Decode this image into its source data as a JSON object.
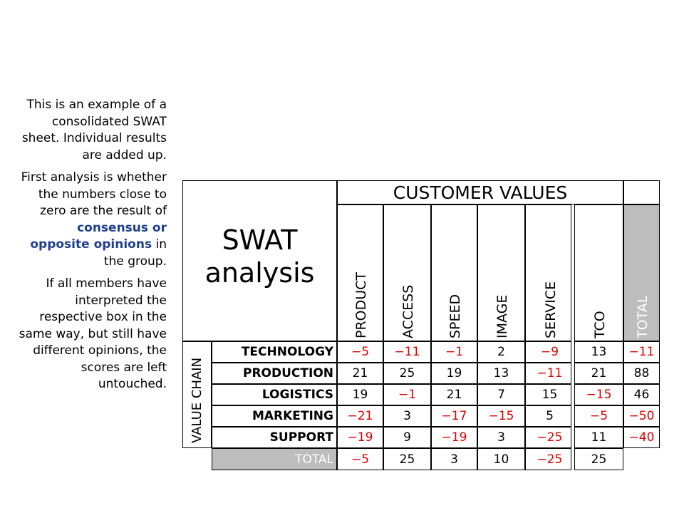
{
  "side_text": {
    "p1": "This is an example of a consolidated SWAT sheet. Individual results are added up.",
    "p2_before": "First analysis is whether the numbers close to zero are the result of ",
    "p2_highlight": "consensus or opposite opinions",
    "p2_after": " in the group.",
    "p3": "If all members have interpreted the respective box in the same way, but still have different opinions, the scores are left untouched."
  },
  "title": {
    "line1": "SWAT",
    "line2": "analysis"
  },
  "customer_values_label": "CUSTOMER VALUES",
  "value_chain_label": "VALUE CHAIN",
  "columns": [
    "PRODUCT",
    "ACCESS",
    "SPEED",
    "IMAGE",
    "SERVICE",
    "TCO",
    "TOTAL"
  ],
  "rows": [
    {
      "label": "TECHNOLOGY",
      "values": [
        "−5",
        "−11",
        "−1",
        "2",
        "−9",
        "13",
        "−11"
      ]
    },
    {
      "label": "PRODUCTION",
      "values": [
        "21",
        "25",
        "19",
        "13",
        "−11",
        "21",
        "88"
      ]
    },
    {
      "label": "LOGISTICS",
      "values": [
        "19",
        "−1",
        "21",
        "7",
        "15",
        "−15",
        "46"
      ]
    },
    {
      "label": "MARKETING",
      "values": [
        "−21",
        "3",
        "−17",
        "−15",
        "5",
        "−5",
        "−50"
      ]
    },
    {
      "label": "SUPPORT",
      "values": [
        "−19",
        "9",
        "−19",
        "3",
        "−25",
        "11",
        "−40"
      ]
    }
  ],
  "total_row": {
    "label": "TOTAL",
    "values": [
      "−5",
      "25",
      "3",
      "10",
      "−25",
      "25"
    ]
  },
  "colors": {
    "negative": "#e00000",
    "highlight": "#1f3f8f",
    "total_fill": "#bdbdbd"
  }
}
